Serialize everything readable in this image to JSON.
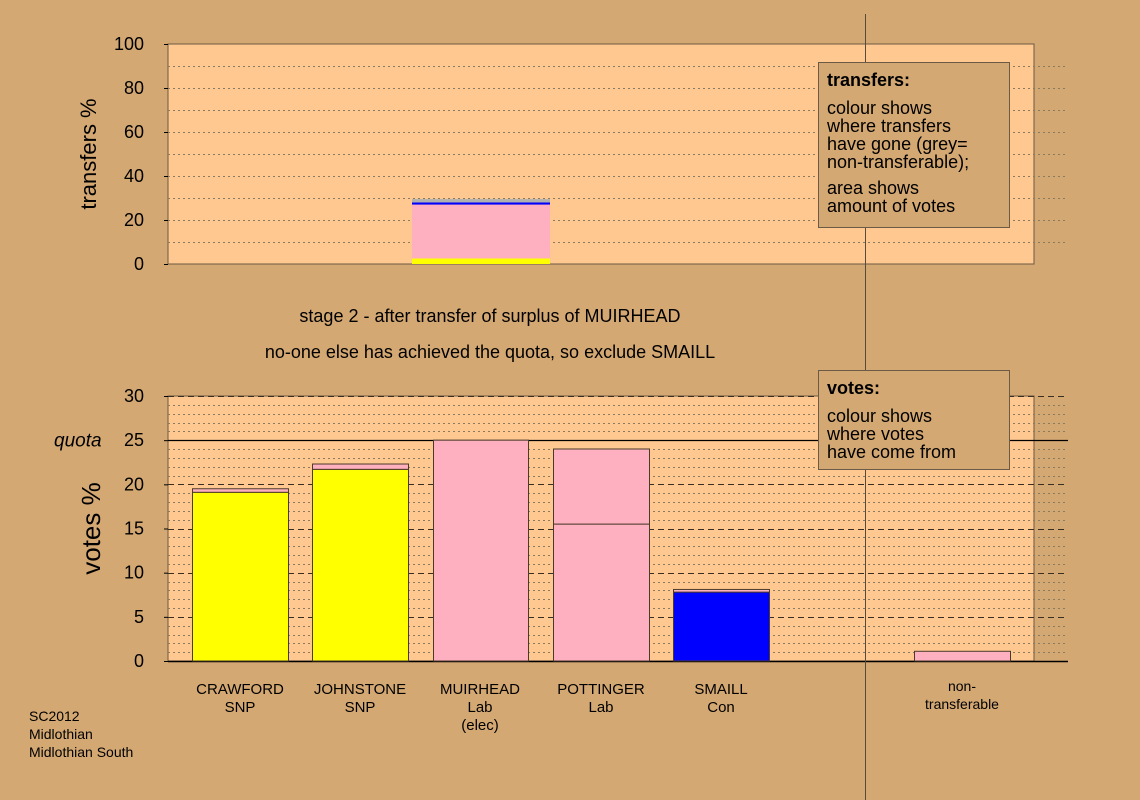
{
  "chart_data": [
    {
      "type": "bar",
      "name": "transfers",
      "ylabel": "transfers %",
      "ylim": [
        0,
        100
      ],
      "yticks": [
        0,
        20,
        40,
        60,
        80,
        100
      ],
      "categories": [
        "CRAWFORD SNP",
        "JOHNSTONE SNP",
        "MUIRHEAD Lab (elec)",
        "POTTINGER Lab",
        "SMAILL Con"
      ],
      "segments": [
        {
          "category_index": 2,
          "from": 0,
          "to": 2.5,
          "color": "#ffff00"
        },
        {
          "category_index": 2,
          "from": 2.5,
          "to": 27,
          "color": "#ffb0c0"
        },
        {
          "category_index": 2,
          "from": 27,
          "to": 28,
          "color": "#0000ff"
        },
        {
          "category_index": 2,
          "from": 28,
          "to": 29.5,
          "color": "#b0b0b0"
        }
      ]
    },
    {
      "type": "bar",
      "name": "votes",
      "ylabel": "votes %",
      "ylim": [
        0,
        30
      ],
      "yticks": [
        0,
        5,
        10,
        15,
        20,
        25,
        30
      ],
      "quota": 25,
      "quota_label": "quota",
      "categories": [
        "CRAWFORD SNP",
        "JOHNSTONE SNP",
        "MUIRHEAD Lab (elec)",
        "POTTINGER Lab",
        "SMAILL Con",
        "non-transferable"
      ],
      "bars": [
        {
          "category": "CRAWFORD SNP",
          "segments": [
            {
              "value": 19.1,
              "color": "#ffff00"
            },
            {
              "value": 0.4,
              "color": "#ffb0c0"
            }
          ]
        },
        {
          "category": "JOHNSTONE SNP",
          "segments": [
            {
              "value": 21.7,
              "color": "#ffff00"
            },
            {
              "value": 0.6,
              "color": "#ffb0c0"
            }
          ]
        },
        {
          "category": "MUIRHEAD Lab (elec)",
          "segments": [
            {
              "value": 25.0,
              "color": "#ffb0c0"
            }
          ]
        },
        {
          "category": "POTTINGER Lab",
          "segments": [
            {
              "value": 15.5,
              "color": "#ffb0c0"
            },
            {
              "value": 8.5,
              "color": "#ffb0c0"
            }
          ]
        },
        {
          "category": "SMAILL Con",
          "segments": [
            {
              "value": 7.8,
              "color": "#0000ff"
            },
            {
              "value": 0.3,
              "color": "#ffb0c0"
            }
          ]
        },
        {
          "category": "non-transferable",
          "segments": [
            {
              "value": 1.1,
              "color": "#ffb0c0"
            }
          ]
        }
      ]
    }
  ],
  "stage_text": "stage 2 - after transfer of surplus of MUIRHEAD",
  "status_text": "no-one else has achieved the quota, so exclude SMAILL",
  "x_labels": [
    [
      "CRAWFORD",
      "SNP"
    ],
    [
      "JOHNSTONE",
      "SNP"
    ],
    [
      "MUIRHEAD",
      "Lab",
      "(elec)"
    ],
    [
      "POTTINGER",
      "Lab"
    ],
    [
      "SMAILL",
      "Con"
    ],
    [
      "non-",
      "transferable"
    ]
  ],
  "legend_transfers": {
    "title": "transfers:",
    "lines": [
      "colour shows",
      "where transfers",
      "have gone (grey=",
      "non-transferable);"
    ],
    "lines2": [
      "area shows",
      "amount of votes"
    ]
  },
  "legend_votes": {
    "title": "votes:",
    "lines": [
      "colour shows",
      "where votes",
      "have come from"
    ]
  },
  "footer": {
    "line1": "SC2012",
    "line2": "Midlothian",
    "line3": "Midlothian South"
  },
  "colors": {
    "background": "#d4a873",
    "plot_top_bg": "#ffc890",
    "plot_bottom_bg": "#ffc890",
    "snp": "#ffff00",
    "lab": "#ffb0c0",
    "con": "#0000ff",
    "nontransferable": "#b0b0b0"
  }
}
